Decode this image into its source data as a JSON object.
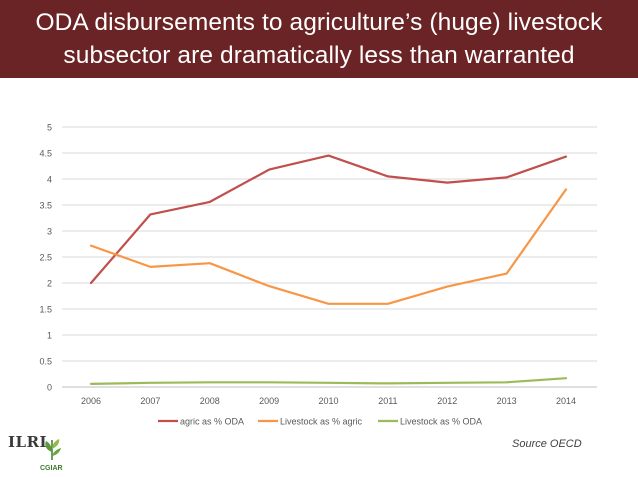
{
  "header": {
    "title_line1": "ODA disbursements to agriculture’s (huge) livestock",
    "title_line2": "subsector are dramatically less than warranted",
    "background": "#6b2426"
  },
  "source_note": "Source OECD",
  "logos": {
    "ilri": "ILRI",
    "cgiar": "CGIAR"
  },
  "chart_data": {
    "type": "line",
    "x": [
      "2006",
      "2007",
      "2008",
      "2009",
      "2010",
      "2011",
      "2012",
      "2013",
      "2014"
    ],
    "ylim": [
      0,
      5
    ],
    "yticks": [
      "0",
      "0.5",
      "1",
      "1.5",
      "2",
      "2.5",
      "3",
      "3.5",
      "4",
      "4.5",
      "5"
    ],
    "grid": true,
    "legend_position": "bottom",
    "series": [
      {
        "name": "agric as % ODA",
        "color": "#c0504d",
        "values": [
          2.0,
          3.32,
          3.56,
          4.18,
          4.45,
          4.05,
          3.93,
          4.03,
          4.43
        ]
      },
      {
        "name": "Livestock as % agric",
        "color": "#f79646",
        "values": [
          2.72,
          2.31,
          2.38,
          1.94,
          1.6,
          1.6,
          1.93,
          2.18,
          3.8
        ]
      },
      {
        "name": "Livestock as % ODA",
        "color": "#9bbb59",
        "values": [
          0.06,
          0.08,
          0.09,
          0.09,
          0.08,
          0.07,
          0.08,
          0.09,
          0.17
        ]
      }
    ]
  }
}
